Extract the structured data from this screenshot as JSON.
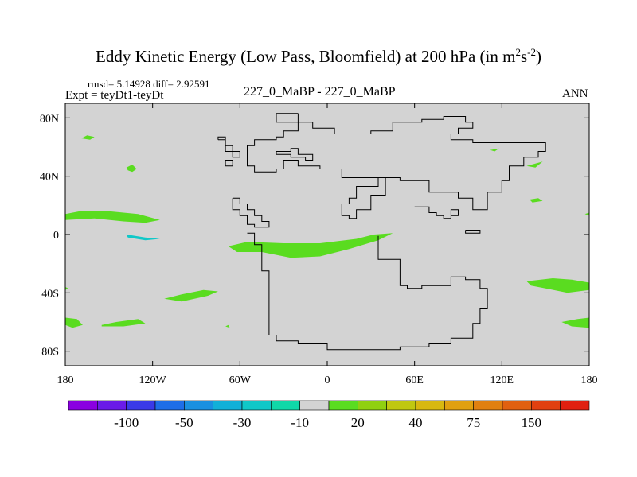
{
  "chart_data": {
    "type": "heatmap",
    "title_main": "Eddy Kinetic Energy (Low Pass, Bloomfield) at 200 hPa (in m",
    "title_sup1": "2",
    "title_mid": "s",
    "title_sup2": "-2",
    "title_end": ")",
    "stats": "rmsd= 5.14928 diff= 2.92591",
    "expt_label": "Expt = teyDt1-teyDt",
    "case_label": "227_0_MaBP - 227_0_MaBP",
    "season": "ANN",
    "x_ticks": [
      {
        "value": -180,
        "label": "180"
      },
      {
        "value": -120,
        "label": "120W"
      },
      {
        "value": -60,
        "label": "60W"
      },
      {
        "value": 0,
        "label": "0"
      },
      {
        "value": 60,
        "label": "60E"
      },
      {
        "value": 120,
        "label": "120E"
      },
      {
        "value": 180,
        "label": "180"
      }
    ],
    "y_ticks": [
      {
        "value": 80,
        "label": "80N"
      },
      {
        "value": 40,
        "label": "40N"
      },
      {
        "value": 0,
        "label": "0"
      },
      {
        "value": -40,
        "label": "40S"
      },
      {
        "value": -80,
        "label": "80S"
      }
    ],
    "xlim": [
      -180,
      180
    ],
    "ylim": [
      -90,
      90
    ],
    "background_value_color": "#d3d3d3",
    "colorbar": {
      "colors": [
        "#8a00e0",
        "#6a1be8",
        "#3a3ae8",
        "#1e6ee8",
        "#1a90e0",
        "#12b0d8",
        "#10c8c8",
        "#10d8a8",
        "#d3d3d3",
        "#5adc20",
        "#90d010",
        "#c0c810",
        "#d8b810",
        "#e0a010",
        "#e08010",
        "#e06010",
        "#e04010",
        "#e02010"
      ],
      "labels": [
        {
          "after_box": 2,
          "text": "-100"
        },
        {
          "after_box": 4,
          "text": "-50"
        },
        {
          "after_box": 6,
          "text": "-30"
        },
        {
          "after_box": 8,
          "text": "-10"
        },
        {
          "after_box": 10,
          "text": "20"
        },
        {
          "after_box": 12,
          "text": "40"
        },
        {
          "after_box": 14,
          "text": "75"
        },
        {
          "after_box": 16,
          "text": "150"
        }
      ]
    },
    "regions": [
      {
        "color": "#5adc20",
        "pts": [
          [
            -169,
            66
          ],
          [
            -165,
            68
          ],
          [
            -160,
            67
          ],
          [
            -163,
            65
          ]
        ]
      },
      {
        "color": "#5adc20",
        "pts": [
          [
            -138,
            46
          ],
          [
            -134,
            48
          ],
          [
            -131,
            45
          ],
          [
            -134,
            43
          ],
          [
            -137,
            44
          ]
        ]
      },
      {
        "color": "#5adc20",
        "pts": [
          [
            -180,
            14
          ],
          [
            -170,
            16
          ],
          [
            -150,
            16
          ],
          [
            -130,
            14
          ],
          [
            -115,
            10
          ],
          [
            -125,
            8
          ],
          [
            -140,
            9
          ],
          [
            -160,
            11
          ],
          [
            -180,
            10
          ]
        ]
      },
      {
        "color": "#10c8c8",
        "pts": [
          [
            -138,
            0
          ],
          [
            -125,
            -2
          ],
          [
            -115,
            -3
          ],
          [
            -125,
            -4
          ],
          [
            -137,
            -2
          ]
        ]
      },
      {
        "color": "#5adc20",
        "pts": [
          [
            -68,
            -8
          ],
          [
            -55,
            -5
          ],
          [
            -30,
            -6
          ],
          [
            -5,
            -6
          ],
          [
            20,
            -3
          ],
          [
            32,
            0
          ],
          [
            45,
            1
          ],
          [
            35,
            -4
          ],
          [
            15,
            -10
          ],
          [
            -5,
            -15
          ],
          [
            -25,
            -16
          ],
          [
            -45,
            -12
          ],
          [
            -62,
            -12
          ]
        ]
      },
      {
        "color": "#5adc20",
        "pts": [
          [
            -112,
            -44
          ],
          [
            -100,
            -41
          ],
          [
            -85,
            -38
          ],
          [
            -75,
            -39
          ],
          [
            -82,
            -42
          ],
          [
            -100,
            -46
          ]
        ]
      },
      {
        "color": "#5adc20",
        "pts": [
          [
            -155,
            -62
          ],
          [
            -145,
            -60
          ],
          [
            -130,
            -58
          ],
          [
            -125,
            -61
          ],
          [
            -140,
            -63
          ],
          [
            -155,
            -63
          ]
        ]
      },
      {
        "color": "#5adc20",
        "pts": [
          [
            -180,
            -57
          ],
          [
            -172,
            -58
          ],
          [
            -168,
            -62
          ],
          [
            -175,
            -64
          ],
          [
            -180,
            -62
          ]
        ]
      },
      {
        "color": "#5adc20",
        "pts": [
          [
            -180,
            -36
          ],
          [
            -178,
            -37
          ],
          [
            -180,
            -38
          ]
        ]
      },
      {
        "color": "#5adc20",
        "pts": [
          [
            -70,
            -63
          ],
          [
            -68,
            -62
          ],
          [
            -67,
            -64
          ]
        ]
      },
      {
        "color": "#5adc20",
        "pts": [
          [
            137,
            -32
          ],
          [
            155,
            -30
          ],
          [
            168,
            -31
          ],
          [
            180,
            -33
          ],
          [
            180,
            -38
          ],
          [
            165,
            -40
          ],
          [
            150,
            -37
          ],
          [
            140,
            -35
          ]
        ]
      },
      {
        "color": "#5adc20",
        "pts": [
          [
            161,
            -60
          ],
          [
            172,
            -58
          ],
          [
            180,
            -57
          ],
          [
            180,
            -64
          ],
          [
            168,
            -63
          ]
        ]
      },
      {
        "color": "#5adc20",
        "pts": [
          [
            139,
            24
          ],
          [
            145,
            25
          ],
          [
            148,
            23
          ],
          [
            141,
            22
          ]
        ]
      },
      {
        "color": "#5adc20",
        "pts": [
          [
            137,
            47
          ],
          [
            144,
            49
          ],
          [
            148,
            50
          ],
          [
            143,
            46
          ]
        ]
      },
      {
        "color": "#5adc20",
        "pts": [
          [
            177,
            14
          ],
          [
            180,
            15
          ],
          [
            180,
            13
          ]
        ]
      },
      {
        "color": "#5adc20",
        "pts": [
          [
            112,
            58
          ],
          [
            118,
            59
          ],
          [
            115,
            57
          ]
        ]
      }
    ],
    "coast": [
      [
        [
          -20,
          83
        ],
        [
          -20,
          77
        ],
        [
          -10,
          77
        ],
        [
          -10,
          73
        ],
        [
          5,
          73
        ],
        [
          5,
          69
        ],
        [
          30,
          69
        ],
        [
          30,
          71
        ],
        [
          45,
          71
        ],
        [
          45,
          77
        ],
        [
          65,
          77
        ],
        [
          65,
          79
        ],
        [
          80,
          79
        ],
        [
          80,
          81
        ],
        [
          95,
          81
        ],
        [
          95,
          77
        ],
        [
          100,
          77
        ],
        [
          100,
          73
        ],
        [
          90,
          73
        ],
        [
          90,
          69
        ],
        [
          85,
          69
        ],
        [
          85,
          65
        ],
        [
          100,
          65
        ],
        [
          100,
          63
        ],
        [
          150,
          63
        ],
        [
          150,
          57
        ],
        [
          145,
          57
        ],
        [
          145,
          53
        ],
        [
          135,
          53
        ],
        [
          135,
          47
        ],
        [
          125,
          47
        ],
        [
          125,
          37
        ],
        [
          120,
          37
        ],
        [
          120,
          29
        ],
        [
          110,
          29
        ],
        [
          110,
          17
        ],
        [
          100,
          17
        ],
        [
          100,
          25
        ],
        [
          90,
          25
        ],
        [
          90,
          29
        ],
        [
          70,
          29
        ],
        [
          70,
          37
        ],
        [
          50,
          37
        ],
        [
          50,
          39
        ],
        [
          35,
          39
        ],
        [
          35,
          33
        ],
        [
          20,
          33
        ],
        [
          20,
          25
        ],
        [
          15,
          25
        ],
        [
          15,
          21
        ],
        [
          10,
          21
        ],
        [
          10,
          13
        ],
        [
          15,
          13
        ],
        [
          15,
          11
        ],
        [
          20,
          11
        ],
        [
          20,
          17
        ],
        [
          30,
          17
        ],
        [
          30,
          27
        ],
        [
          40,
          27
        ],
        [
          40,
          39
        ],
        [
          10,
          39
        ],
        [
          10,
          45
        ],
        [
          -5,
          45
        ],
        [
          -5,
          47
        ],
        [
          -20,
          47
        ],
        [
          -20,
          51
        ],
        [
          -30,
          51
        ],
        [
          -30,
          45
        ],
        [
          -35,
          45
        ],
        [
          -35,
          43
        ],
        [
          -50,
          43
        ],
        [
          -50,
          47
        ],
        [
          -55,
          47
        ],
        [
          -55,
          61
        ],
        [
          -50,
          61
        ],
        [
          -50,
          65
        ],
        [
          -35,
          65
        ],
        [
          -35,
          67
        ],
        [
          -30,
          67
        ],
        [
          -30,
          71
        ],
        [
          -20,
          71
        ],
        [
          -20,
          77
        ],
        [
          -35,
          77
        ],
        [
          -35,
          83
        ],
        [
          -20,
          83
        ]
      ],
      [
        [
          -75,
          65
        ],
        [
          -70,
          65
        ],
        [
          -70,
          61
        ],
        [
          -65,
          61
        ],
        [
          -65,
          57
        ],
        [
          -60,
          57
        ],
        [
          -60,
          53
        ],
        [
          -65,
          53
        ],
        [
          -65,
          57
        ],
        [
          -70,
          57
        ],
        [
          -70,
          67
        ],
        [
          -75,
          67
        ],
        [
          -75,
          65
        ]
      ],
      [
        [
          -70,
          47
        ],
        [
          -65,
          47
        ],
        [
          -65,
          51
        ],
        [
          -70,
          51
        ],
        [
          -70,
          47
        ]
      ],
      [
        [
          -35,
          57
        ],
        [
          -25,
          57
        ],
        [
          -25,
          59
        ],
        [
          -20,
          59
        ],
        [
          -20,
          55
        ],
        [
          -10,
          55
        ],
        [
          -10,
          51
        ],
        [
          -15,
          51
        ],
        [
          -15,
          53
        ],
        [
          -25,
          53
        ],
        [
          -25,
          55
        ],
        [
          -35,
          55
        ],
        [
          -35,
          57
        ]
      ],
      [
        [
          -65,
          25
        ],
        [
          -60,
          25
        ],
        [
          -60,
          21
        ],
        [
          -55,
          21
        ],
        [
          -55,
          17
        ],
        [
          -50,
          17
        ],
        [
          -50,
          13
        ],
        [
          -45,
          13
        ],
        [
          -45,
          9
        ],
        [
          -40,
          9
        ],
        [
          -40,
          5
        ],
        [
          -50,
          5
        ],
        [
          -50,
          7
        ],
        [
          -55,
          7
        ],
        [
          -55,
          13
        ],
        [
          -60,
          13
        ],
        [
          -60,
          17
        ],
        [
          -65,
          17
        ],
        [
          -65,
          25
        ]
      ],
      [
        [
          -55,
          1
        ],
        [
          -50,
          1
        ],
        [
          -50,
          -7
        ],
        [
          -45,
          -7
        ],
        [
          -45,
          -25
        ],
        [
          -40,
          -25
        ],
        [
          -40,
          -69
        ],
        [
          -35,
          -69
        ],
        [
          -35,
          -73
        ],
        [
          -20,
          -73
        ],
        [
          -20,
          -75
        ],
        [
          0,
          -75
        ],
        [
          0,
          -79
        ],
        [
          50,
          -79
        ],
        [
          50,
          -77
        ],
        [
          70,
          -77
        ],
        [
          70,
          -75
        ],
        [
          85,
          -75
        ],
        [
          85,
          -71
        ],
        [
          100,
          -71
        ],
        [
          100,
          -61
        ],
        [
          105,
          -61
        ],
        [
          105,
          -51
        ],
        [
          110,
          -51
        ],
        [
          110,
          -37
        ],
        [
          105,
          -37
        ],
        [
          105,
          -31
        ],
        [
          95,
          -31
        ],
        [
          95,
          -29
        ],
        [
          85,
          -29
        ],
        [
          85,
          -35
        ],
        [
          65,
          -35
        ],
        [
          65,
          -37
        ],
        [
          55,
          -37
        ],
        [
          55,
          -35
        ],
        [
          50,
          -35
        ],
        [
          50,
          -17
        ],
        [
          35,
          -17
        ],
        [
          35,
          -5
        ],
        [
          35,
          -1
        ]
      ],
      [
        [
          60,
          19
        ],
        [
          70,
          19
        ],
        [
          70,
          15
        ],
        [
          75,
          15
        ],
        [
          75,
          13
        ],
        [
          80,
          13
        ],
        [
          80,
          11
        ],
        [
          85,
          11
        ],
        [
          85,
          17
        ],
        [
          90,
          17
        ],
        [
          90,
          13
        ],
        [
          85,
          13
        ],
        [
          85,
          11
        ],
        [
          80,
          11
        ],
        [
          80,
          13
        ],
        [
          75,
          13
        ],
        [
          75,
          15
        ],
        [
          70,
          15
        ],
        [
          70,
          19
        ],
        [
          60,
          19
        ]
      ],
      [
        [
          95,
          3
        ],
        [
          105,
          3
        ],
        [
          105,
          1
        ],
        [
          95,
          1
        ],
        [
          95,
          3
        ]
      ]
    ]
  }
}
